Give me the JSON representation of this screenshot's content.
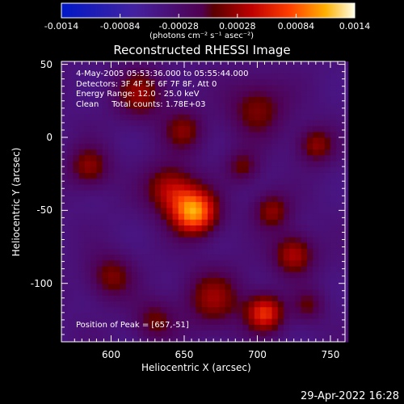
{
  "chart_data": {
    "type": "heatmap",
    "title": "Reconstructed RHESSI Image",
    "xlabel": "Heliocentric X (arcsec)",
    "ylabel": "Heliocentric Y (arcsec)",
    "xlim": [
      566,
      760
    ],
    "ylim": [
      -140,
      52
    ],
    "xticks": [
      600,
      650,
      700,
      750
    ],
    "yticks": [
      50,
      0,
      -50,
      -100
    ],
    "colorbar": {
      "range": [
        -0.0014,
        0.0014
      ],
      "ticks": [
        "-0.0014",
        "-0.00084",
        "-0.00028",
        "0.00028",
        "0.00084",
        "0.0014"
      ],
      "units": "(photons cm⁻² s⁻¹ asec⁻²)"
    },
    "annotations": [
      "4-May-2005 05:53:36.000 to 05:55:44.000",
      "Detectors: 3F 4F 5F 6F 7F 8F, Att 0",
      "Energy Range: 12.0 - 25.0 keV",
      "Clean     Total counts: 1.78E+03"
    ],
    "peak_label": "Position of Peak = [657,-51]",
    "peak": [
      657,
      -51
    ],
    "peak_value": 0.0014,
    "sources": [
      {
        "x": 657,
        "y": -51,
        "amp": 1.0,
        "sigma": 11
      },
      {
        "x": 640,
        "y": -35,
        "amp": 0.55,
        "sigma": 12
      },
      {
        "x": 705,
        "y": -120,
        "amp": 0.75,
        "sigma": 9
      },
      {
        "x": 670,
        "y": -110,
        "amp": 0.45,
        "sigma": 14
      },
      {
        "x": 725,
        "y": -80,
        "amp": 0.55,
        "sigma": 10
      },
      {
        "x": 710,
        "y": -50,
        "amp": 0.45,
        "sigma": 9
      },
      {
        "x": 585,
        "y": -20,
        "amp": 0.45,
        "sigma": 10
      },
      {
        "x": 600,
        "y": -95,
        "amp": 0.4,
        "sigma": 11
      },
      {
        "x": 620,
        "y": 30,
        "amp": 0.45,
        "sigma": 12
      },
      {
        "x": 700,
        "y": 20,
        "amp": 0.4,
        "sigma": 14
      },
      {
        "x": 740,
        "y": -5,
        "amp": 0.45,
        "sigma": 9
      },
      {
        "x": 650,
        "y": 5,
        "amp": 0.4,
        "sigma": 10
      },
      {
        "x": 690,
        "y": -20,
        "amp": 0.35,
        "sigma": 8
      },
      {
        "x": 735,
        "y": -115,
        "amp": 0.3,
        "sigma": 8
      },
      {
        "x": 630,
        "y": -125,
        "amp": 0.35,
        "sigma": 10
      }
    ]
  },
  "timestamp": "29-Apr-2022 16:28"
}
